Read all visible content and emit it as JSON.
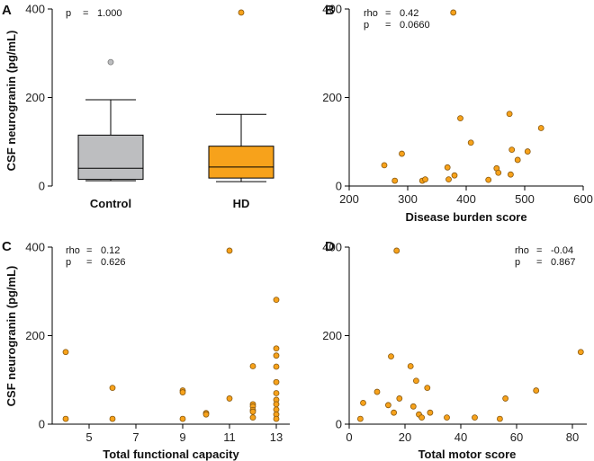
{
  "colors": {
    "hd": "#F7A21B",
    "control": "#BDBEC0",
    "point_stroke": "#8a5a10",
    "axis": "#000000"
  },
  "chart_data": [
    {
      "panel": "A",
      "type": "box",
      "ylabel": "CSF neurogranin (pg/mL)",
      "ylim": [
        0,
        400
      ],
      "yticks": [
        0,
        200,
        400
      ],
      "categories": [
        "Control",
        "HD"
      ],
      "stats": {
        "p_label": "p",
        "p_value": "1.000"
      },
      "boxes": [
        {
          "name": "Control",
          "color": "#BDBEC0",
          "whisker_low": 12,
          "q1": 15,
          "median": 40,
          "q3": 115,
          "whisker_high": 195,
          "outliers": [
            280
          ]
        },
        {
          "name": "HD",
          "color": "#F7A21B",
          "whisker_low": 10,
          "q1": 18,
          "median": 43,
          "q3": 90,
          "whisker_high": 162,
          "outliers": [
            392
          ]
        }
      ]
    },
    {
      "panel": "B",
      "type": "scatter",
      "xlabel": "Disease burden score",
      "xlim": [
        200,
        600
      ],
      "xticks": [
        200,
        300,
        400,
        500,
        600
      ],
      "ylim": [
        0,
        400
      ],
      "yticks": [
        0,
        200,
        400
      ],
      "stats": {
        "rho_label": "rho",
        "rho_value": "0.42",
        "p_label": "p",
        "p_value": "0.0660"
      },
      "x": [
        260,
        278,
        290,
        325,
        330,
        368,
        370,
        380,
        378,
        390,
        408,
        438,
        452,
        455,
        476,
        474,
        478,
        488,
        505,
        528
      ],
      "y": [
        47,
        12,
        73,
        12,
        15,
        42,
        15,
        24,
        392,
        153,
        98,
        14,
        40,
        30,
        26,
        163,
        82,
        59,
        78,
        131
      ]
    },
    {
      "panel": "C",
      "type": "scatter",
      "ylabel": "CSF neurogranin (pg/mL)",
      "xlabel": "Total functional capacity",
      "xlim": [
        4,
        13.5
      ],
      "xticks": [
        5,
        7,
        9,
        11,
        13
      ],
      "ylim": [
        0,
        400
      ],
      "yticks": [
        0,
        200,
        400
      ],
      "stats": {
        "rho_label": "rho",
        "rho_value": "0.12",
        "p_label": "p",
        "p_value": "0.626"
      },
      "x": [
        4,
        4,
        6,
        6,
        9,
        9,
        9,
        10,
        10,
        11,
        11,
        12,
        12,
        12,
        12,
        12,
        12,
        13,
        13,
        13,
        13,
        13,
        13,
        13,
        13,
        13,
        13,
        13
      ],
      "y": [
        163,
        12,
        82,
        12,
        76,
        72,
        12,
        25,
        22,
        392,
        58,
        131,
        45,
        40,
        32,
        28,
        15,
        281,
        171,
        155,
        130,
        95,
        70,
        55,
        45,
        33,
        22,
        12
      ]
    },
    {
      "panel": "D",
      "type": "scatter",
      "xlabel": "Total motor score",
      "xlim": [
        0,
        84
      ],
      "xticks": [
        0,
        20,
        40,
        60,
        80
      ],
      "ylim": [
        0,
        400
      ],
      "yticks": [
        0,
        200,
        400
      ],
      "stats": {
        "rho_label": "rho",
        "rho_value": "-0.04",
        "p_label": "p",
        "p_value": "0.867"
      },
      "x": [
        4,
        5,
        10,
        14,
        15,
        16,
        17,
        18,
        22,
        23,
        24,
        25,
        26,
        28,
        29,
        35,
        45,
        54,
        56,
        67,
        83
      ],
      "y": [
        12,
        48,
        73,
        43,
        153,
        26,
        392,
        58,
        131,
        40,
        98,
        22,
        15,
        82,
        26,
        15,
        15,
        12,
        58,
        76,
        163
      ]
    }
  ]
}
